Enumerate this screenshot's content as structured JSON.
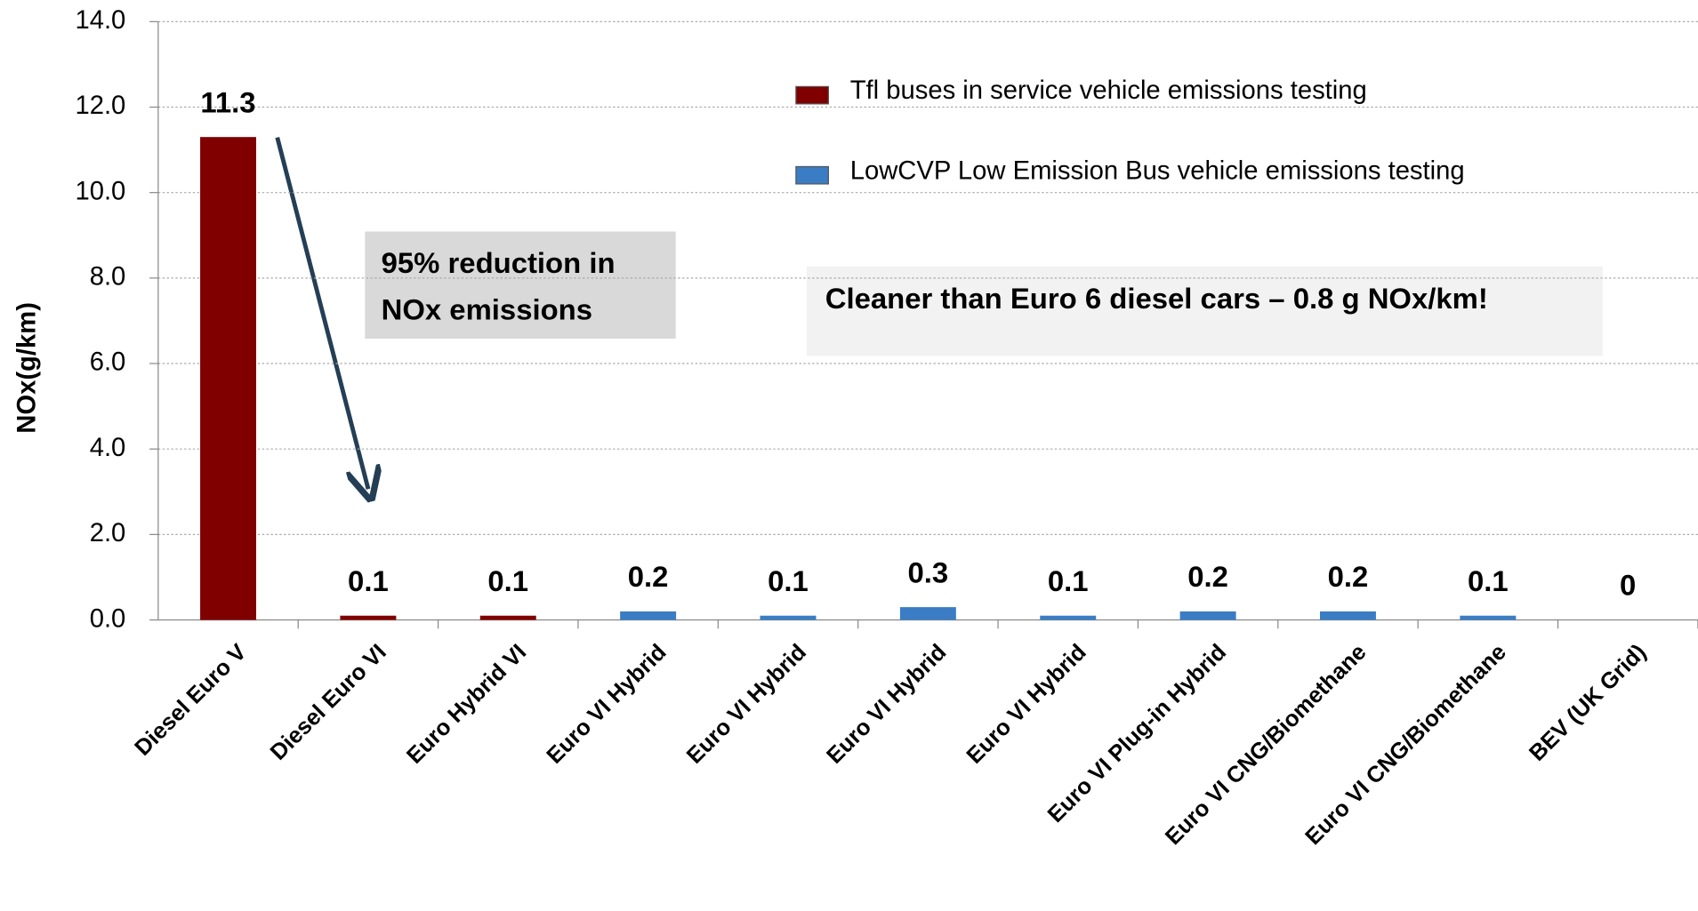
{
  "chart_data": {
    "type": "bar",
    "y_label": "NOx(g/km)",
    "categories": [
      "Diesel Euro V",
      "Diesel Euro VI",
      "Euro Hybrid  VI",
      "Euro VI  Hybrid",
      "Euro VI Hybrid",
      "Euro VI Hybrid",
      "Euro VI Hybrid",
      "Euro VI Plug-in Hybrid",
      "Euro VI CNG/Biomethane",
      "Euro VI CNG/Biomethane",
      "BEV (UK Grid)"
    ],
    "series": [
      {
        "name": "Tfl buses in service vehicle emissions testing",
        "color": "#800000",
        "values": [
          11.3,
          0.1,
          0.1,
          null,
          null,
          null,
          null,
          null,
          null,
          null,
          null
        ]
      },
      {
        "name": "LowCVP Low Emission Bus vehicle emissions testing",
        "color": "#3a7dc4",
        "values": [
          null,
          null,
          null,
          0.2,
          0.1,
          0.3,
          0.1,
          0.2,
          0.2,
          0.1,
          0
        ]
      }
    ],
    "ylim": [
      0,
      14
    ],
    "yticks": [
      {
        "value": 0,
        "label": "0.0"
      },
      {
        "value": 2,
        "label": "2.0"
      },
      {
        "value": 4,
        "label": "4.0"
      },
      {
        "value": 6,
        "label": "6.0"
      },
      {
        "value": 8,
        "label": "8.0"
      },
      {
        "value": 10,
        "label": "10.0"
      },
      {
        "value": 12,
        "label": "12.0"
      },
      {
        "value": 14,
        "label": "14.0"
      }
    ],
    "grid": true,
    "legend_position": "top-right",
    "annotations": [
      {
        "lines": [
          "95% reduction in",
          "NOx emissions"
        ]
      },
      {
        "lines": [
          "Cleaner than Euro 6 diesel cars – 0.8 g NOx/km!"
        ]
      }
    ]
  }
}
